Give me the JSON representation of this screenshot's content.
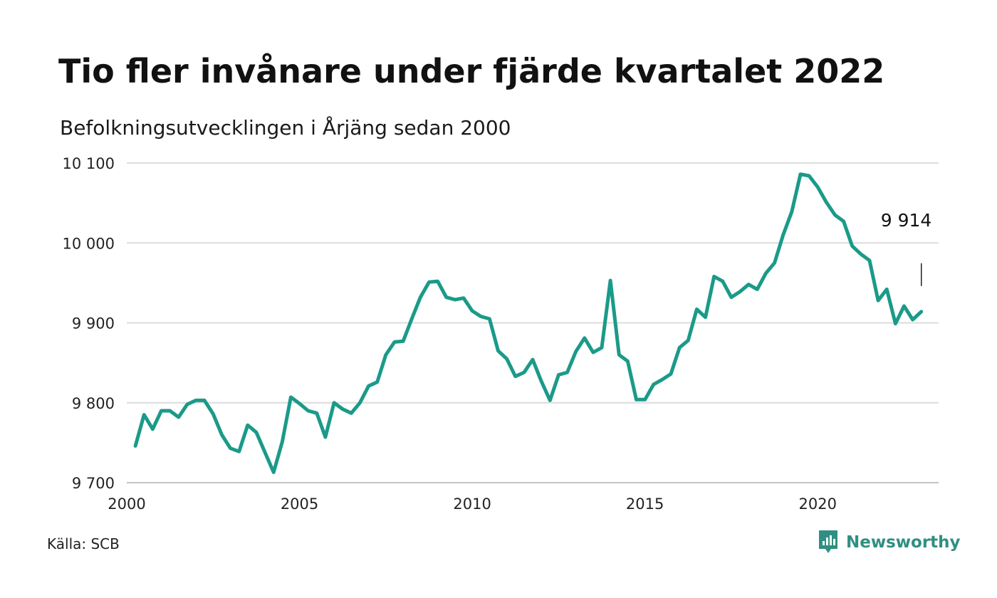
{
  "header": {
    "title": "Tio fler invånare under fjärde kvartalet 2022",
    "subtitle": "Befolkningsutvecklingen i Årjäng sedan 2000"
  },
  "footer": {
    "source": "Källa: SCB",
    "brand": "Newsworthy",
    "brand_icon": "newsworthy-logo-icon"
  },
  "colors": {
    "line": "#1b9a89",
    "grid": "#dcdcdc",
    "brand": "#2f8f82"
  },
  "chart_data": {
    "type": "line",
    "title": "Tio fler invånare under fjärde kvartalet 2022",
    "subtitle": "Befolkningsutvecklingen i Årjäng sedan 2000",
    "ylim": [
      9700,
      10100
    ],
    "yticks": [
      9700,
      9800,
      9900,
      10000,
      10100
    ],
    "ytick_labels": [
      "9 700",
      "9 800",
      "9 900",
      "10 000",
      "10 100"
    ],
    "xlim": [
      2000,
      2023.5
    ],
    "xticks": [
      2000,
      2005,
      2010,
      2015,
      2020
    ],
    "xtick_labels": [
      "2000",
      "2005",
      "2010",
      "2015",
      "2020"
    ],
    "grid": true,
    "end_label": "9 914",
    "series": [
      {
        "x": [
          2000.25,
          2000.5,
          2000.75,
          2001.0,
          2001.25,
          2001.5,
          2001.75,
          2002.0,
          2002.25,
          2002.5,
          2002.75,
          2003.0,
          2003.25,
          2003.5,
          2003.75,
          2004.0,
          2004.25,
          2004.5,
          2004.75,
          2005.0,
          2005.25,
          2005.5,
          2005.75,
          2006.0,
          2006.25,
          2006.5,
          2006.75,
          2007.0,
          2007.25,
          2007.5,
          2007.75,
          2008.0,
          2008.25,
          2008.5,
          2008.75,
          2009.0,
          2009.25,
          2009.5,
          2009.75,
          2010.0,
          2010.25,
          2010.5,
          2010.75,
          2011.0,
          2011.25,
          2011.5,
          2011.75,
          2012.0,
          2012.25,
          2012.5,
          2012.75,
          2013.0,
          2013.25,
          2013.5,
          2013.75,
          2014.0,
          2014.25,
          2014.5,
          2014.75,
          2015.0,
          2015.25,
          2015.5,
          2015.75,
          2016.0,
          2016.25,
          2016.5,
          2016.75,
          2017.0,
          2017.25,
          2017.5,
          2017.75,
          2018.0,
          2018.25,
          2018.5,
          2018.75,
          2019.0,
          2019.25,
          2019.5,
          2019.75,
          2020.0,
          2020.25,
          2020.5,
          2020.75,
          2021.0,
          2021.25,
          2021.5,
          2021.75,
          2022.0,
          2022.25,
          2022.5,
          2022.75,
          2023.0
        ],
        "values": [
          9746,
          9785,
          9767,
          9790,
          9790,
          9782,
          9798,
          9803,
          9803,
          9786,
          9760,
          9743,
          9739,
          9772,
          9763,
          9738,
          9713,
          9751,
          9807,
          9799,
          9790,
          9787,
          9757,
          9800,
          9792,
          9787,
          9800,
          9821,
          9826,
          9860,
          9876,
          9877,
          9905,
          9932,
          9951,
          9952,
          9932,
          9929,
          9931,
          9915,
          9908,
          9905,
          9865,
          9855,
          9833,
          9838,
          9854,
          9827,
          9803,
          9835,
          9838,
          9864,
          9881,
          9863,
          9869,
          9953,
          9860,
          9852,
          9804,
          9804,
          9823,
          9829,
          9836,
          9869,
          9878,
          9917,
          9907,
          9958,
          9952,
          9932,
          9939,
          9948,
          9942,
          9962,
          9975,
          10010,
          10039,
          10086,
          10084,
          10070,
          10051,
          10035,
          10027,
          9996,
          9986,
          9978,
          9928,
          9942,
          9899,
          9921,
          9904,
          9914
        ]
      }
    ]
  }
}
